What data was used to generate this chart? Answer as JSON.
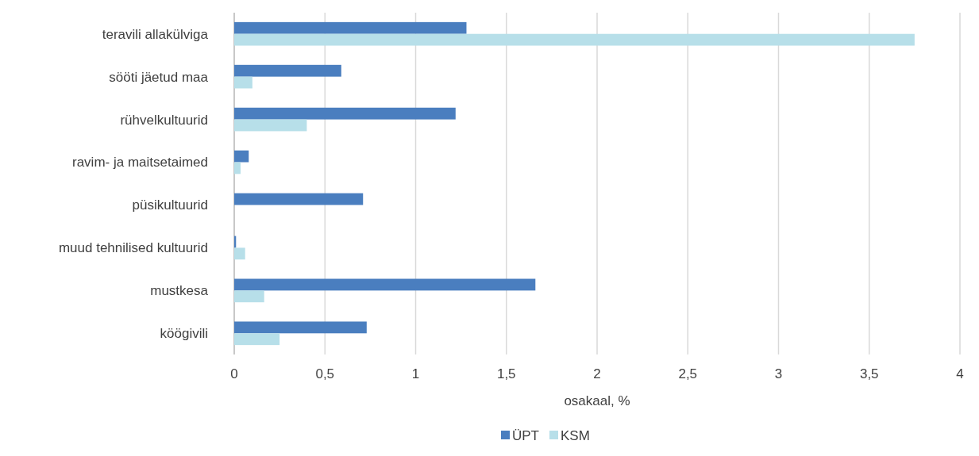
{
  "chart_data": {
    "type": "bar",
    "orientation": "horizontal",
    "categories": [
      "teravili allakülviga",
      "sööti jäetud maa",
      "rühvelkultuurid",
      "ravim- ja maitsetaimed",
      "püsikultuurid",
      "muud tehnilised kultuurid",
      "mustkesa",
      "köögivili"
    ],
    "series": [
      {
        "name": "ÜPT",
        "color": "#4a7ebf",
        "values": [
          1.28,
          0.59,
          1.22,
          0.08,
          0.71,
          0.01,
          1.66,
          0.73
        ]
      },
      {
        "name": "KSM",
        "color": "#b7dfe9",
        "values": [
          3.75,
          0.1,
          0.4,
          0.035,
          0,
          0.06,
          0.165,
          0.25
        ]
      }
    ],
    "xlabel": "osakaal, %",
    "xlim": [
      0,
      4
    ],
    "xticks": [
      0,
      {
        "value": 0.5,
        "label": "0,5"
      },
      1,
      {
        "value": 1.5,
        "label": "1,5"
      },
      2,
      {
        "value": 2.5,
        "label": "2,5"
      },
      3,
      {
        "value": 3.5,
        "label": "3,5"
      },
      4
    ],
    "grid": "x",
    "legend": "bottom"
  }
}
